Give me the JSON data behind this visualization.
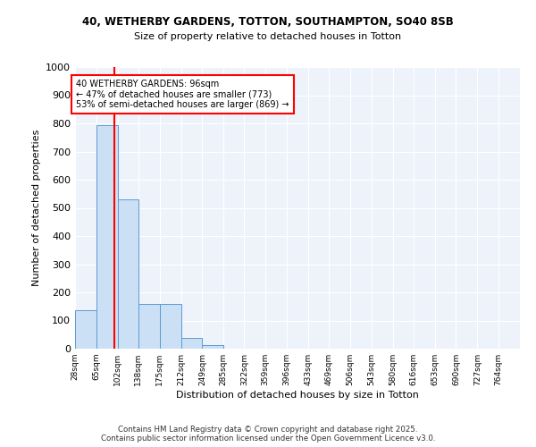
{
  "title1": "40, WETHERBY GARDENS, TOTTON, SOUTHAMPTON, SO40 8SB",
  "title2": "Size of property relative to detached houses in Totton",
  "xlabel": "Distribution of detached houses by size in Totton",
  "ylabel": "Number of detached properties",
  "bar_color": "#cce0f5",
  "bar_edge_color": "#5b9bd5",
  "background_color": "#eef3fb",
  "grid_color": "#ffffff",
  "red_line_x": 96,
  "annotation_text": "40 WETHERBY GARDENS: 96sqm\n← 47% of detached houses are smaller (773)\n53% of semi-detached houses are larger (869) →",
  "annotation_box_color": "white",
  "annotation_box_edge": "red",
  "categories": [
    "28sqm",
    "65sqm",
    "102sqm",
    "138sqm",
    "175sqm",
    "212sqm",
    "249sqm",
    "285sqm",
    "322sqm",
    "359sqm",
    "396sqm",
    "433sqm",
    "469sqm",
    "506sqm",
    "543sqm",
    "580sqm",
    "616sqm",
    "653sqm",
    "690sqm",
    "727sqm",
    "764sqm"
  ],
  "bin_edges": [
    28,
    65,
    102,
    138,
    175,
    212,
    249,
    285,
    322,
    359,
    396,
    433,
    469,
    506,
    543,
    580,
    616,
    653,
    690,
    727,
    764,
    801
  ],
  "values": [
    135,
    795,
    530,
    160,
    160,
    38,
    12,
    0,
    0,
    0,
    0,
    0,
    0,
    0,
    0,
    0,
    0,
    0,
    0,
    0,
    0
  ],
  "footer": "Contains HM Land Registry data © Crown copyright and database right 2025.\nContains public sector information licensed under the Open Government Licence v3.0.",
  "ylim": [
    0,
    1000
  ],
  "yticks": [
    0,
    100,
    200,
    300,
    400,
    500,
    600,
    700,
    800,
    900,
    1000
  ]
}
